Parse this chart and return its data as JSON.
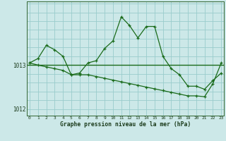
{
  "xlabel": "Graphe pression niveau de la mer (hPa)",
  "background_color": "#cce8e8",
  "line_color": "#1a6b1a",
  "grid_color": "#99cccc",
  "hours": [
    0,
    1,
    2,
    3,
    4,
    5,
    6,
    7,
    8,
    9,
    10,
    11,
    12,
    13,
    14,
    15,
    16,
    17,
    18,
    19,
    20,
    21,
    22,
    23
  ],
  "line1": [
    1013.05,
    1013.15,
    1013.45,
    1013.35,
    1013.2,
    1012.78,
    1012.82,
    1013.05,
    1013.1,
    1013.38,
    1013.55,
    1014.1,
    1013.9,
    1013.62,
    1013.88,
    1013.88,
    1013.2,
    1012.92,
    1012.78,
    1012.52,
    1012.52,
    1012.45,
    1012.65,
    1012.82
  ],
  "line2": [
    1013.05,
    1013.0,
    1012.96,
    1012.92,
    1012.88,
    1012.78,
    1012.78,
    1012.78,
    1012.74,
    1012.7,
    1012.66,
    1012.62,
    1012.58,
    1012.54,
    1012.5,
    1012.46,
    1012.42,
    1012.38,
    1012.34,
    1012.3,
    1012.3,
    1012.28,
    1012.58,
    1013.05
  ],
  "hline_y": 1013.0,
  "ylim": [
    1011.85,
    1014.45
  ],
  "yticks": [
    1012,
    1013
  ],
  "xlim": [
    -0.3,
    23.3
  ],
  "figwidth": 3.2,
  "figheight": 2.0,
  "dpi": 100
}
